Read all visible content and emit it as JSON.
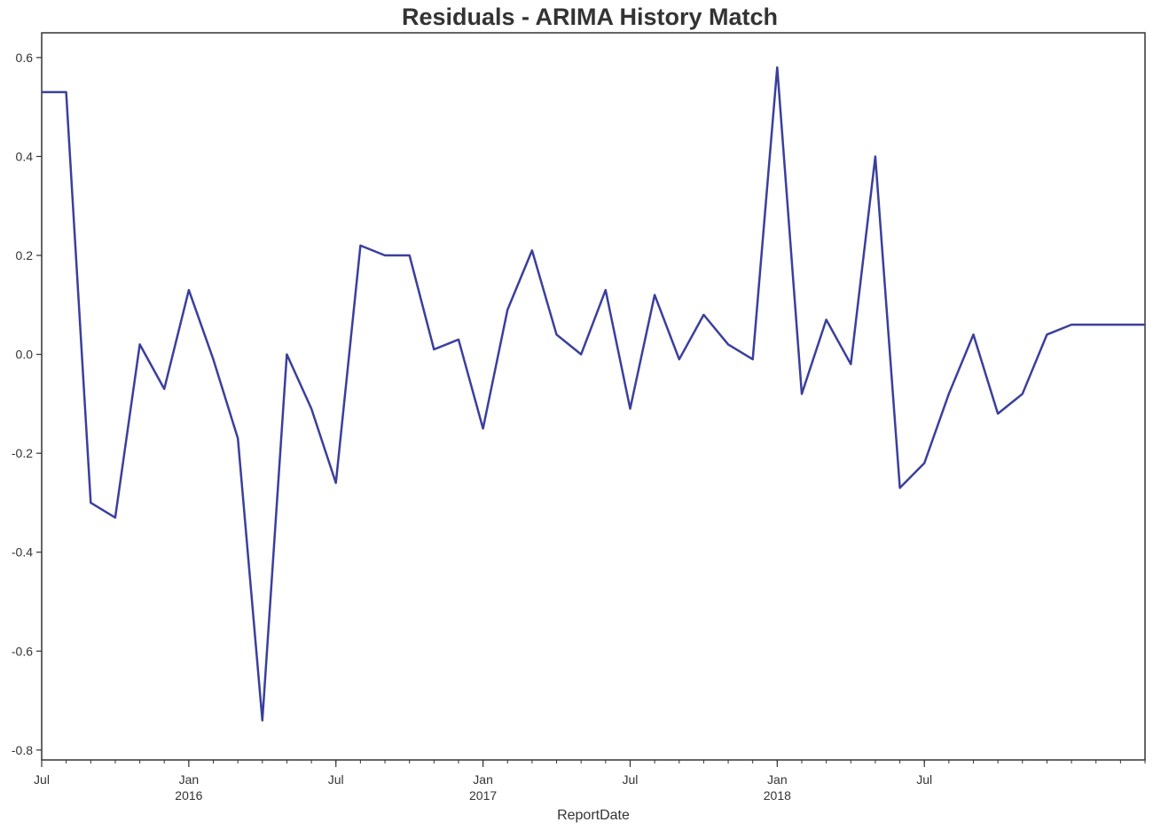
{
  "chart_data": {
    "type": "line",
    "title": "Residuals - ARIMA History Match",
    "xlabel": "ReportDate",
    "ylabel": "",
    "ylim": [
      -0.82,
      0.65
    ],
    "yticks": [
      "0.6",
      "0.4",
      "0.2",
      "0.0",
      "-0.2",
      "-0.4",
      "-0.6",
      "-0.8"
    ],
    "ytick_values": [
      0.6,
      0.4,
      0.2,
      0.0,
      -0.2,
      -0.4,
      -0.6,
      -0.8
    ],
    "xlim": [
      "2015-07",
      "2019-04"
    ],
    "grid": false,
    "line_color": "#3a3f9c",
    "x_major_ticks": [
      {
        "x": "2015-07",
        "label": "Jul",
        "sublabel": ""
      },
      {
        "x": "2016-01",
        "label": "Jan",
        "sublabel": "2016"
      },
      {
        "x": "2016-07",
        "label": "Jul",
        "sublabel": ""
      },
      {
        "x": "2017-01",
        "label": "Jan",
        "sublabel": "2017"
      },
      {
        "x": "2017-07",
        "label": "Jul",
        "sublabel": ""
      },
      {
        "x": "2018-01",
        "label": "Jan",
        "sublabel": "2018"
      },
      {
        "x": "2018-07",
        "label": "Jul",
        "sublabel": ""
      }
    ],
    "series": [
      {
        "x": [
          "2015-07",
          "2015-08",
          "2015-09",
          "2015-10",
          "2015-11",
          "2015-12",
          "2016-01",
          "2016-02",
          "2016-03",
          "2016-04",
          "2016-05",
          "2016-06",
          "2016-07",
          "2016-08",
          "2016-09",
          "2016-10",
          "2016-11",
          "2016-12",
          "2017-01",
          "2017-02",
          "2017-03",
          "2017-04",
          "2017-05",
          "2017-06",
          "2017-07",
          "2017-08",
          "2017-09",
          "2017-10",
          "2017-11",
          "2017-12",
          "2018-01",
          "2018-02",
          "2018-03",
          "2018-04",
          "2018-05",
          "2018-06",
          "2018-07",
          "2018-08",
          "2018-09",
          "2018-10",
          "2018-11",
          "2018-12",
          "2019-01",
          "2019-02",
          "2019-03",
          "2019-04"
        ],
        "values": [
          0.53,
          0.53,
          -0.3,
          -0.33,
          0.02,
          -0.07,
          0.13,
          -0.01,
          -0.17,
          -0.74,
          0.0,
          -0.11,
          -0.26,
          0.22,
          0.2,
          0.2,
          0.01,
          0.03,
          -0.15,
          0.09,
          0.21,
          0.04,
          0.0,
          0.13,
          -0.11,
          0.12,
          -0.01,
          0.08,
          0.02,
          -0.01,
          0.58,
          -0.08,
          0.07,
          -0.02,
          0.4,
          -0.27,
          -0.22,
          -0.08,
          0.04,
          -0.12,
          -0.08,
          0.04,
          0.06,
          0.06,
          0.06,
          0.06
        ]
      }
    ]
  }
}
